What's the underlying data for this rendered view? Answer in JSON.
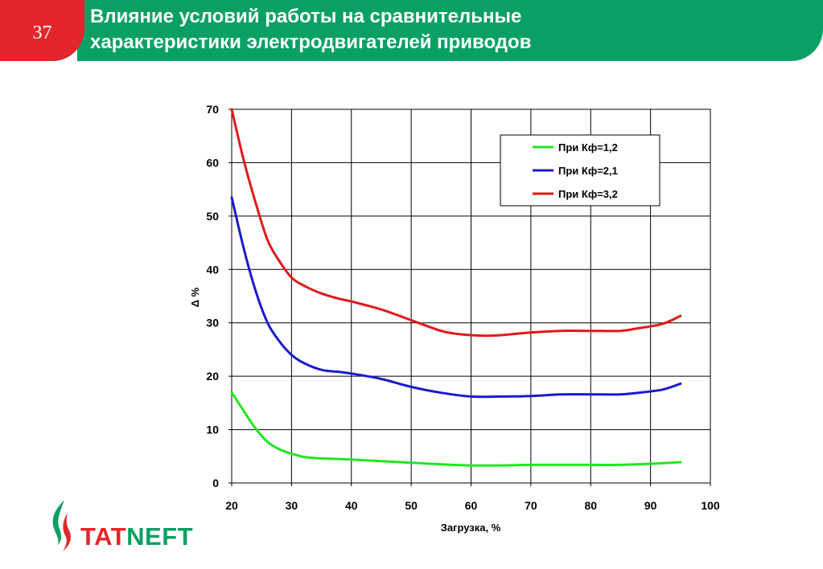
{
  "slide": {
    "number": "37",
    "title_line1": "Влияние условий работы на сравнительные",
    "title_line2": "характеристики электродвигателей приводов"
  },
  "logo": {
    "part1": "TAT",
    "part2": "NEFT"
  },
  "colors": {
    "green_brand": "#0aa064",
    "red_brand": "#e3262b"
  },
  "chart_data": {
    "type": "line",
    "xlabel": "Загрузка, %",
    "ylabel": "Δ %",
    "xlim": [
      20,
      100
    ],
    "ylim": [
      0,
      70
    ],
    "xticks": [
      "20",
      "30",
      "40",
      "50",
      "60",
      "70",
      "80",
      "90",
      "100"
    ],
    "yticks": [
      "0",
      "10",
      "20",
      "30",
      "40",
      "50",
      "60",
      "70"
    ],
    "grid": true,
    "legend_position": "top-right",
    "series": [
      {
        "name": "При Кф=1,2",
        "color": "#22e622",
        "x": [
          20,
          22,
          24,
          26,
          28,
          30,
          32,
          35,
          38,
          40,
          45,
          50,
          55,
          60,
          65,
          70,
          75,
          80,
          85,
          90,
          95
        ],
        "y": [
          17,
          13.5,
          10.2,
          7.7,
          6.3,
          5.5,
          4.9,
          4.6,
          4.5,
          4.4,
          4.1,
          3.8,
          3.5,
          3.3,
          3.3,
          3.4,
          3.4,
          3.4,
          3.4,
          3.6,
          3.9
        ]
      },
      {
        "name": "При Кф=2,1",
        "color": "#1a1acc",
        "x": [
          20,
          22,
          24,
          26,
          28,
          30,
          32,
          35,
          38,
          40,
          45,
          50,
          55,
          60,
          65,
          70,
          75,
          80,
          85,
          88,
          92,
          95
        ],
        "y": [
          53.5,
          44,
          36,
          30,
          26.5,
          24,
          22.5,
          21.2,
          20.8,
          20.5,
          19.5,
          18,
          16.9,
          16.2,
          16.2,
          16.3,
          16.6,
          16.6,
          16.6,
          16.9,
          17.5,
          18.6
        ]
      },
      {
        "name": "При Кф=3,2",
        "color": "#e01a1a",
        "x": [
          20,
          22,
          24,
          26,
          28,
          30,
          32,
          35,
          38,
          40,
          45,
          50,
          55,
          58,
          62,
          65,
          70,
          75,
          80,
          85,
          88,
          92,
          95
        ],
        "y": [
          70,
          60.5,
          52.5,
          45.5,
          41.5,
          38.5,
          37,
          35.5,
          34.5,
          34,
          32.5,
          30.5,
          28.5,
          27.9,
          27.6,
          27.7,
          28.2,
          28.5,
          28.5,
          28.5,
          29,
          29.8,
          31.3
        ]
      }
    ]
  }
}
